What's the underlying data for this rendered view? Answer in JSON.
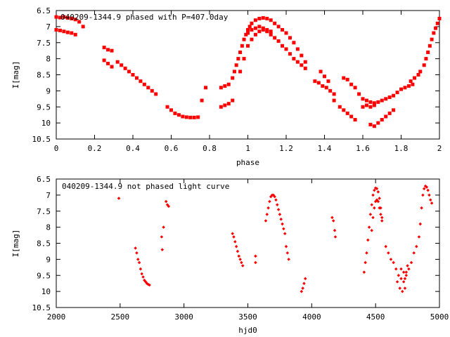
{
  "chart_data": [
    {
      "type": "scatter",
      "title": "040209-1344.9 phased with P=407.0day",
      "xlabel": "phase",
      "ylabel": "I[mag]",
      "xlim": [
        0,
        2
      ],
      "ylim": [
        10.5,
        6.5
      ],
      "y_inverted": true,
      "xticks": [
        "0",
        "0.2",
        "0.4",
        "0.6",
        "0.8",
        "1",
        "1.2",
        "1.4",
        "1.6",
        "1.8",
        "2"
      ],
      "yticks": [
        "6.5",
        "7",
        "7.5",
        "8",
        "8.5",
        "9",
        "9.5",
        "10",
        "10.5"
      ],
      "marker_color": "#ff0000",
      "series": [
        {
          "points": [
            [
              0.0,
              6.7
            ],
            [
              0.02,
              6.72
            ],
            [
              0.04,
              6.7
            ],
            [
              0.06,
              6.73
            ],
            [
              0.08,
              6.75
            ],
            [
              0.1,
              6.78
            ],
            [
              0.12,
              6.85
            ],
            [
              0.14,
              7.0
            ],
            [
              0.0,
              7.1
            ],
            [
              0.02,
              7.12
            ],
            [
              0.04,
              7.15
            ],
            [
              0.06,
              7.18
            ],
            [
              0.08,
              7.2
            ],
            [
              0.1,
              7.25
            ],
            [
              0.25,
              7.65
            ],
            [
              0.27,
              7.72
            ],
            [
              0.29,
              7.75
            ],
            [
              0.25,
              8.05
            ],
            [
              0.27,
              8.15
            ],
            [
              0.29,
              8.25
            ],
            [
              0.32,
              8.1
            ],
            [
              0.34,
              8.2
            ],
            [
              0.36,
              8.3
            ],
            [
              0.38,
              8.4
            ],
            [
              0.4,
              8.5
            ],
            [
              0.42,
              8.6
            ],
            [
              0.44,
              8.7
            ],
            [
              0.46,
              8.8
            ],
            [
              0.48,
              8.9
            ],
            [
              0.5,
              9.0
            ],
            [
              0.52,
              9.1
            ],
            [
              0.58,
              9.5
            ],
            [
              0.6,
              9.6
            ],
            [
              0.62,
              9.7
            ],
            [
              0.64,
              9.75
            ],
            [
              0.66,
              9.8
            ],
            [
              0.68,
              9.82
            ],
            [
              0.7,
              9.83
            ],
            [
              0.72,
              9.83
            ],
            [
              0.74,
              9.82
            ],
            [
              0.76,
              9.3
            ],
            [
              0.78,
              8.9
            ],
            [
              0.86,
              9.5
            ],
            [
              0.88,
              9.45
            ],
            [
              0.9,
              9.4
            ],
            [
              0.92,
              9.3
            ],
            [
              0.86,
              8.9
            ],
            [
              0.88,
              8.85
            ],
            [
              0.9,
              8.8
            ],
            [
              0.92,
              8.6
            ],
            [
              0.93,
              8.4
            ],
            [
              0.94,
              8.2
            ],
            [
              0.95,
              8.0
            ],
            [
              0.96,
              7.8
            ],
            [
              0.97,
              7.6
            ],
            [
              0.98,
              7.4
            ],
            [
              0.99,
              7.25
            ],
            [
              1.0,
              7.1
            ],
            [
              1.01,
              7.0
            ],
            [
              1.02,
              6.9
            ],
            [
              1.04,
              6.8
            ],
            [
              1.06,
              6.75
            ],
            [
              1.08,
              6.73
            ],
            [
              1.1,
              6.75
            ],
            [
              1.12,
              6.8
            ],
            [
              1.14,
              6.9
            ],
            [
              1.16,
              7.0
            ],
            [
              1.18,
              7.1
            ],
            [
              1.2,
              7.2
            ],
            [
              1.22,
              7.35
            ],
            [
              1.24,
              7.5
            ],
            [
              1.26,
              7.7
            ],
            [
              1.28,
              7.9
            ],
            [
              1.3,
              8.1
            ],
            [
              0.96,
              8.4
            ],
            [
              0.98,
              8.0
            ],
            [
              1.0,
              7.6
            ],
            [
              1.02,
              7.4
            ],
            [
              1.04,
              7.25
            ],
            [
              1.06,
              7.15
            ],
            [
              1.08,
              7.1
            ],
            [
              1.1,
              7.15
            ],
            [
              1.12,
              7.25
            ],
            [
              1.14,
              7.35
            ],
            [
              1.16,
              7.45
            ],
            [
              1.18,
              7.6
            ],
            [
              1.2,
              7.7
            ],
            [
              1.22,
              7.85
            ],
            [
              1.24,
              8.0
            ],
            [
              1.26,
              8.1
            ],
            [
              1.28,
              8.2
            ],
            [
              1.3,
              8.3
            ],
            [
              1.0,
              7.2
            ],
            [
              1.02,
              7.1
            ],
            [
              1.04,
              7.05
            ],
            [
              1.06,
              7.0
            ],
            [
              1.08,
              7.05
            ],
            [
              1.1,
              7.1
            ],
            [
              1.12,
              7.15
            ],
            [
              1.35,
              8.7
            ],
            [
              1.37,
              8.75
            ],
            [
              1.39,
              8.85
            ],
            [
              1.41,
              8.9
            ],
            [
              1.43,
              9.0
            ],
            [
              1.45,
              9.1
            ],
            [
              1.38,
              8.4
            ],
            [
              1.4,
              8.55
            ],
            [
              1.42,
              8.7
            ],
            [
              1.45,
              9.3
            ],
            [
              1.48,
              9.5
            ],
            [
              1.5,
              9.6
            ],
            [
              1.52,
              9.7
            ],
            [
              1.54,
              9.8
            ],
            [
              1.56,
              9.9
            ],
            [
              1.5,
              8.6
            ],
            [
              1.52,
              8.65
            ],
            [
              1.54,
              8.8
            ],
            [
              1.56,
              8.9
            ],
            [
              1.58,
              9.1
            ],
            [
              1.6,
              9.25
            ],
            [
              1.62,
              9.3
            ],
            [
              1.64,
              9.35
            ],
            [
              1.66,
              9.38
            ],
            [
              1.68,
              9.35
            ],
            [
              1.7,
              9.3
            ],
            [
              1.72,
              9.25
            ],
            [
              1.74,
              9.2
            ],
            [
              1.76,
              9.15
            ],
            [
              1.78,
              9.05
            ],
            [
              1.8,
              8.95
            ],
            [
              1.82,
              8.9
            ],
            [
              1.84,
              8.85
            ],
            [
              1.86,
              8.8
            ],
            [
              1.64,
              10.05
            ],
            [
              1.66,
              10.1
            ],
            [
              1.68,
              10.0
            ],
            [
              1.7,
              9.9
            ],
            [
              1.72,
              9.8
            ],
            [
              1.74,
              9.7
            ],
            [
              1.76,
              9.6
            ],
            [
              1.6,
              9.5
            ],
            [
              1.62,
              9.45
            ],
            [
              1.64,
              9.5
            ],
            [
              1.66,
              9.45
            ],
            [
              1.85,
              8.7
            ],
            [
              1.87,
              8.6
            ],
            [
              1.89,
              8.5
            ],
            [
              1.9,
              8.4
            ],
            [
              1.92,
              8.2
            ],
            [
              1.93,
              8.0
            ],
            [
              1.94,
              7.8
            ],
            [
              1.95,
              7.6
            ],
            [
              1.96,
              7.4
            ],
            [
              1.97,
              7.2
            ],
            [
              1.98,
              7.05
            ],
            [
              1.99,
              6.9
            ],
            [
              2.0,
              6.75
            ]
          ]
        }
      ]
    },
    {
      "type": "scatter",
      "title": "040209-1344.9 not phased light curve",
      "xlabel": "hjd0",
      "ylabel": "I[mag]",
      "xlim": [
        2000,
        5000
      ],
      "ylim": [
        10.5,
        6.5
      ],
      "y_inverted": true,
      "xticks": [
        "2000",
        "2500",
        "3000",
        "3500",
        "4000",
        "4500",
        "5000"
      ],
      "yticks": [
        "6.5",
        "7",
        "7.5",
        "8",
        "8.5",
        "9",
        "9.5",
        "10",
        "10.5"
      ],
      "marker_color": "#ff0000",
      "series": [
        {
          "points": [
            [
              2490,
              7.1
            ],
            [
              2620,
              8.65
            ],
            [
              2630,
              8.8
            ],
            [
              2640,
              9.0
            ],
            [
              2650,
              9.1
            ],
            [
              2660,
              9.3
            ],
            [
              2670,
              9.45
            ],
            [
              2680,
              9.55
            ],
            [
              2690,
              9.65
            ],
            [
              2700,
              9.7
            ],
            [
              2710,
              9.75
            ],
            [
              2720,
              9.78
            ],
            [
              2730,
              9.8
            ],
            [
              2825,
              8.3
            ],
            [
              2830,
              8.7
            ],
            [
              2840,
              8.0
            ],
            [
              2860,
              7.2
            ],
            [
              2870,
              7.3
            ],
            [
              2880,
              7.35
            ],
            [
              3380,
              8.2
            ],
            [
              3390,
              8.3
            ],
            [
              3400,
              8.45
            ],
            [
              3410,
              8.6
            ],
            [
              3420,
              8.75
            ],
            [
              3430,
              8.9
            ],
            [
              3440,
              9.0
            ],
            [
              3450,
              9.1
            ],
            [
              3460,
              9.2
            ],
            [
              3560,
              8.9
            ],
            [
              3560,
              9.1
            ],
            [
              3640,
              7.8
            ],
            [
              3650,
              7.6
            ],
            [
              3660,
              7.4
            ],
            [
              3670,
              7.2
            ],
            [
              3680,
              7.05
            ],
            [
              3690,
              7.0
            ],
            [
              3700,
              7.0
            ],
            [
              3710,
              7.05
            ],
            [
              3720,
              7.15
            ],
            [
              3730,
              7.3
            ],
            [
              3740,
              7.45
            ],
            [
              3750,
              7.6
            ],
            [
              3760,
              7.75
            ],
            [
              3770,
              7.9
            ],
            [
              3780,
              8.05
            ],
            [
              3790,
              8.2
            ],
            [
              3800,
              8.6
            ],
            [
              3810,
              8.8
            ],
            [
              3820,
              9.0
            ],
            [
              3920,
              10.0
            ],
            [
              3930,
              9.9
            ],
            [
              3940,
              9.75
            ],
            [
              3950,
              9.6
            ],
            [
              4160,
              7.7
            ],
            [
              4170,
              7.8
            ],
            [
              4180,
              8.1
            ],
            [
              4185,
              8.3
            ],
            [
              4410,
              9.4
            ],
            [
              4420,
              9.1
            ],
            [
              4430,
              8.8
            ],
            [
              4440,
              8.4
            ],
            [
              4450,
              8.0
            ],
            [
              4460,
              7.6
            ],
            [
              4470,
              7.3
            ],
            [
              4480,
              7.0
            ],
            [
              4490,
              6.85
            ],
            [
              4500,
              6.78
            ],
            [
              4510,
              6.8
            ],
            [
              4520,
              6.9
            ],
            [
              4530,
              7.1
            ],
            [
              4540,
              7.4
            ],
            [
              4550,
              7.7
            ],
            [
              4470,
              8.1
            ],
            [
              4480,
              7.7
            ],
            [
              4490,
              7.4
            ],
            [
              4500,
              7.2
            ],
            [
              4510,
              7.15
            ],
            [
              4520,
              7.2
            ],
            [
              4530,
              7.4
            ],
            [
              4540,
              7.6
            ],
            [
              4550,
              7.8
            ],
            [
              4580,
              8.6
            ],
            [
              4600,
              8.8
            ],
            [
              4620,
              9.0
            ],
            [
              4640,
              9.1
            ],
            [
              4660,
              9.3
            ],
            [
              4680,
              9.5
            ],
            [
              4700,
              9.6
            ],
            [
              4720,
              9.7
            ],
            [
              4730,
              9.6
            ],
            [
              4740,
              9.4
            ],
            [
              4750,
              9.2
            ],
            [
              4670,
              9.7
            ],
            [
              4690,
              9.9
            ],
            [
              4710,
              10.0
            ],
            [
              4730,
              9.9
            ],
            [
              4700,
              9.3
            ],
            [
              4720,
              9.4
            ],
            [
              4740,
              9.5
            ],
            [
              4760,
              9.3
            ],
            [
              4780,
              9.1
            ],
            [
              4800,
              8.8
            ],
            [
              4820,
              8.6
            ],
            [
              4840,
              8.3
            ],
            [
              4850,
              7.9
            ],
            [
              4860,
              7.4
            ],
            [
              4870,
              7.0
            ],
            [
              4880,
              6.8
            ],
            [
              4890,
              6.72
            ],
            [
              4900,
              6.75
            ],
            [
              4910,
              6.85
            ],
            [
              4920,
              7.0
            ],
            [
              4930,
              7.15
            ],
            [
              4940,
              7.25
            ]
          ]
        }
      ]
    }
  ]
}
